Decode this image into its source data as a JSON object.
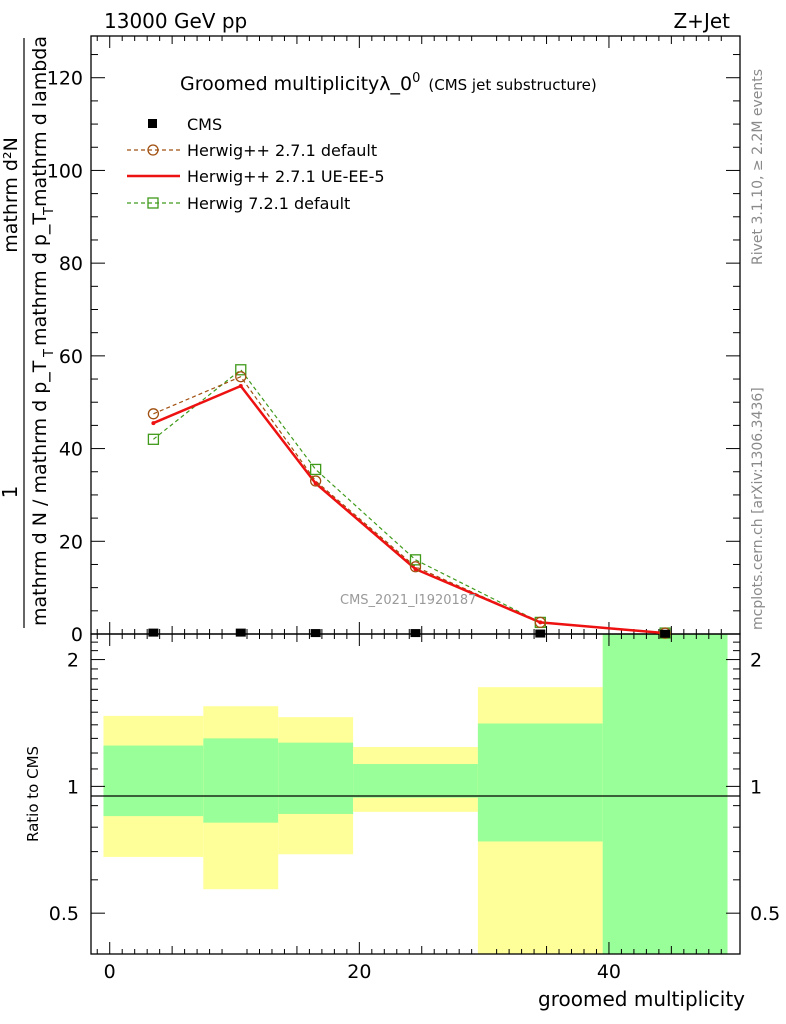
{
  "header": {
    "left": "13000 GeV pp",
    "right": "Z+Jet"
  },
  "side_labels": {
    "rivet": "Rivet 3.1.10, ≥ 2.2M events",
    "mcplots": "mcplots.cern.ch [arXiv:1306.3436]"
  },
  "main_plot": {
    "title": "Groomed multiplicityλ_0",
    "title_sup": "0",
    "title_note": "(CMS jet substructure)",
    "ylabel_numerator": "mathrm d²N",
    "ylabel_fraction_num": "1",
    "ylabel_upper": "mathrm d p_T mathrm d lambda",
    "ylabel_upper_sub": "T",
    "ylabel_lower": "mathrm d N / mathrm d p_T",
    "ylabel_lower_sub": "T",
    "watermark": "CMS_2021_I1920187"
  },
  "ratio_plot": {
    "ylabel": "Ratio to CMS",
    "xlabel": "groomed multiplicity"
  },
  "legend": [
    {
      "label": "CMS"
    },
    {
      "label": "Herwig++ 2.7.1 default"
    },
    {
      "label": "Herwig++ 2.7.1 UE-EE-5"
    },
    {
      "label": "Herwig 7.2.1 default"
    }
  ],
  "colors": {
    "cms": "#000000",
    "herwig_default": "#a05010",
    "herwig_ueee5": "#ee1111",
    "herwig7": "#3f9a1a",
    "band_inner": "#99ff99",
    "band_outer": "#ffff99"
  },
  "chart_data": {
    "type": "line",
    "x_range": [
      -1.5,
      50.5
    ],
    "y_range_main": [
      0,
      129
    ],
    "y_range_ratio": [
      0.4,
      2.3
    ],
    "x_ticks": [
      0,
      20,
      40
    ],
    "x_tick_labels": [
      "0",
      "20",
      "40"
    ],
    "y_ticks_main": [
      0,
      20,
      40,
      60,
      80,
      100,
      120
    ],
    "y_tick_labels_main": [
      "0",
      "20",
      "40",
      "60",
      "80",
      "100",
      "120"
    ],
    "y_ticks_ratio": [
      0.5,
      1,
      2
    ],
    "y_tick_labels_ratio": [
      "0.5",
      "1",
      "2"
    ],
    "bins": [
      [
        -0.5,
        7.5
      ],
      [
        7.5,
        13.5
      ],
      [
        13.5,
        19.5
      ],
      [
        19.5,
        29.5
      ],
      [
        29.5,
        39.5
      ],
      [
        39.5,
        49.5
      ]
    ],
    "x": [
      3.5,
      10.5,
      16.5,
      24.5,
      34.5,
      44.5
    ],
    "series": [
      {
        "name": "CMS",
        "values": [
          0.3,
          0.3,
          0.2,
          0.2,
          0.1,
          0.05
        ]
      },
      {
        "name": "Herwig++ 2.7.1 default",
        "values": [
          47.5,
          55.5,
          33.0,
          14.5,
          2.5,
          0.2
        ]
      },
      {
        "name": "Herwig++ 2.7.1 UE-EE-5",
        "values": [
          45.5,
          53.5,
          32.5,
          14.0,
          2.5,
          0.2
        ]
      },
      {
        "name": "Herwig 7.2.1 default",
        "values": [
          42.0,
          57.0,
          35.5,
          16.0,
          2.5,
          0.2
        ]
      }
    ],
    "ratio_band_inner": [
      [
        0.85,
        1.25
      ],
      [
        0.82,
        1.3
      ],
      [
        0.86,
        1.27
      ],
      [
        0.94,
        1.13
      ],
      [
        0.74,
        1.41
      ],
      [
        0.3,
        2.5
      ]
    ],
    "ratio_band_outer": [
      [
        0.68,
        1.47
      ],
      [
        0.57,
        1.55
      ],
      [
        0.69,
        1.46
      ],
      [
        0.87,
        1.24
      ],
      [
        0.3,
        1.72
      ],
      [
        0.3,
        2.5
      ]
    ]
  }
}
